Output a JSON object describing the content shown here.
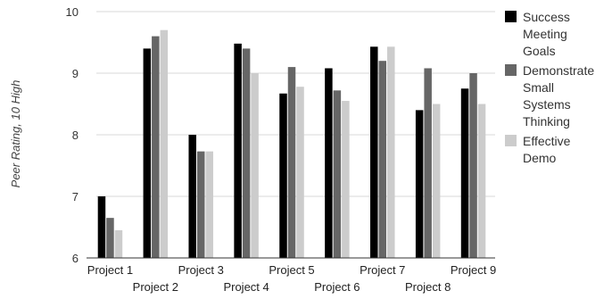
{
  "chart_data": {
    "type": "bar",
    "title": "",
    "xlabel": "",
    "ylabel": "Peer Rating, 10 High",
    "ylim": [
      6,
      10
    ],
    "yticks": [
      "6",
      "7",
      "8",
      "9",
      "10"
    ],
    "grid": true,
    "legend_position": "right",
    "categories": [
      "Project 1",
      "Project 2",
      "Project 3",
      "Project 4",
      "Project 5",
      "Project 6",
      "Project 7",
      "Project 8",
      "Project 9"
    ],
    "series": [
      {
        "name": "Success Meeting Goals",
        "legend_lines": [
          "Success",
          "Meeting",
          "Goals"
        ],
        "color": "#000000",
        "values": [
          7.0,
          9.4,
          8.0,
          9.48,
          8.67,
          9.08,
          9.43,
          8.4,
          8.75
        ]
      },
      {
        "name": "Demonstrate Small Systems Thinking",
        "legend_lines": [
          "Demonstrate",
          "Small",
          "Systems",
          "Thinking"
        ],
        "color": "#666666",
        "values": [
          6.65,
          9.6,
          7.73,
          9.4,
          9.1,
          8.72,
          9.2,
          9.08,
          9.0
        ]
      },
      {
        "name": "Effective Demo",
        "legend_lines": [
          "Effective",
          "Demo"
        ],
        "color": "#cccccc",
        "values": [
          6.45,
          9.7,
          7.73,
          9.0,
          8.78,
          8.55,
          9.43,
          8.5,
          8.5
        ]
      }
    ]
  }
}
